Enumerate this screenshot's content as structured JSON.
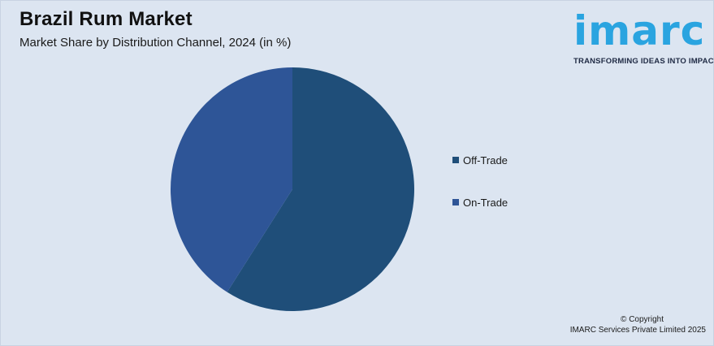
{
  "header": {
    "title": "Brazil Rum Market",
    "subtitle": "Market Share by Distribution Channel, 2024 (in %)"
  },
  "logo": {
    "wordmark": "imarc",
    "tagline": "TRANSFORMING IDEAS INTO IMPACT",
    "color": "#2aa4e0"
  },
  "chart_data": {
    "type": "pie",
    "title": "Brazil Rum Market",
    "subtitle": "Market Share by Distribution Channel, 2024 (in %)",
    "categories": [
      "Off-Trade",
      "On-Trade"
    ],
    "values": [
      59,
      41
    ],
    "colors": [
      "#1f4e79",
      "#2e5597"
    ],
    "legend_position": "right"
  },
  "footer": {
    "copyright_line1": "© Copyright",
    "copyright_line2": "IMARC Services Private Limited 2025"
  }
}
